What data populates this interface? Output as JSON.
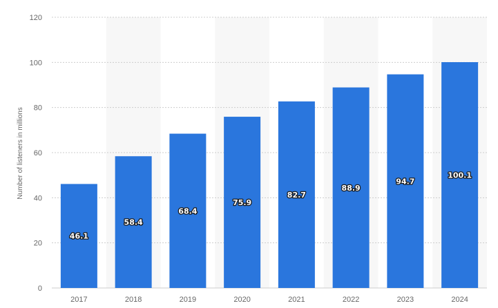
{
  "chart_data": {
    "type": "bar",
    "title": "",
    "xlabel": "",
    "ylabel": "Number of listeners in millions",
    "categories": [
      "2017",
      "2018",
      "2019",
      "2020",
      "2021",
      "2022",
      "2023",
      "2024"
    ],
    "series": [
      {
        "values": [
          46.1,
          58.4,
          68.4,
          75.9,
          82.7,
          88.9,
          94.7,
          100.1
        ]
      }
    ],
    "data_labels": [
      "46.1",
      "58.4",
      "68.4",
      "75.9",
      "82.7",
      "88.9",
      "94.7",
      "100.1"
    ],
    "ylim": [
      0,
      120
    ],
    "yticks": [
      0,
      20,
      40,
      60,
      80,
      100,
      120
    ],
    "grid": "horizontal-dotted",
    "legend": "none",
    "colors": {
      "bar": "#2a76dd",
      "band": "#f7f7f7",
      "grid": "#cccccc",
      "axis_text": "#666666"
    }
  }
}
